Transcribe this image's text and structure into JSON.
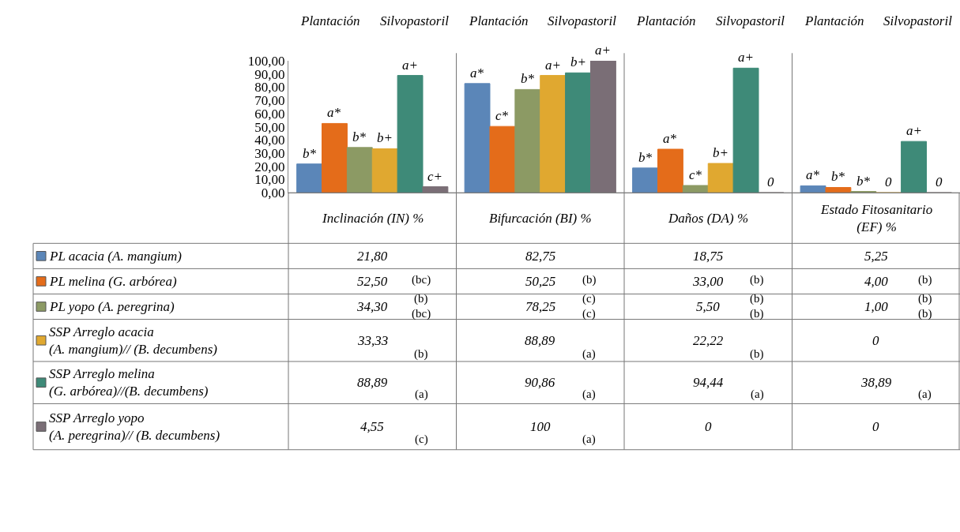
{
  "chart_data": {
    "type": "bar",
    "categories": [
      "Inclinación (IN) %",
      "Bifurcación (BI) %",
      "Daños (DA) %",
      "Estado Fitosanitario (EF) %"
    ],
    "series": [
      {
        "name": "PL acacia (A. mangium)",
        "color": "#5b86b8",
        "values": [
          21.8,
          82.75,
          18.75,
          5.25
        ],
        "value_labels": [
          "21,80",
          "82,75",
          "18,75",
          "5,25"
        ]
      },
      {
        "name": "PL melina (G. arbórea)",
        "color": "#e46c1a",
        "values": [
          52.5,
          50.25,
          33.0,
          4.0
        ],
        "value_labels": [
          "52,50",
          "50,25",
          "33,00",
          "4,00"
        ]
      },
      {
        "name": "PL yopo (A. peregrina)",
        "color": "#8c9a64",
        "values": [
          34.3,
          78.25,
          5.5,
          1.0
        ],
        "value_labels": [
          "34,30",
          "78,25",
          "5,50",
          "1,00"
        ]
      },
      {
        "name": "SSP Arreglo acacia\n(A. mangium)// (B. decumbens)",
        "color": "#e0a830",
        "values": [
          33.33,
          88.89,
          22.22,
          0
        ],
        "value_labels": [
          "33,33",
          "88,89",
          "22,22",
          "0"
        ]
      },
      {
        "name": "SSP Arreglo melina\n(G. arbórea)//(B. decumbens)",
        "color": "#3e8a78",
        "values": [
          88.89,
          90.86,
          94.44,
          38.89
        ],
        "value_labels": [
          "88,89",
          "90,86",
          "94,44",
          "38,89"
        ]
      },
      {
        "name": "SSP Arreglo yopo\n(A. peregrina)// (B. decumbens)",
        "color": "#7a6e76",
        "values": [
          4.55,
          100,
          0,
          0
        ],
        "value_labels": [
          "4,55",
          "100",
          "0",
          "0"
        ]
      }
    ],
    "ylim": [
      0,
      100
    ],
    "yticks": [
      {
        "value": 0,
        "label": "0,00"
      },
      {
        "value": 10,
        "label": "10,00"
      },
      {
        "value": 20,
        "label": "20,00"
      },
      {
        "value": 30,
        "label": "30,00"
      },
      {
        "value": 40,
        "label": "40,00"
      },
      {
        "value": 50,
        "label": "50,00"
      },
      {
        "value": 60,
        "label": "60,00"
      },
      {
        "value": 70,
        "label": "70,00"
      },
      {
        "value": 80,
        "label": "80,00"
      },
      {
        "value": 90,
        "label": "90,00"
      },
      {
        "value": 100,
        "label": "100,00"
      }
    ],
    "legend": "bottom",
    "annotations": [
      "Plantación",
      "Silvopastoril",
      "Plantación",
      "Silvopastoril",
      "Plantación",
      "Silvopastoril",
      "Plantación",
      "Silvopastoril",
      "(bc)",
      "(b)",
      "(b)",
      "(b)",
      "(b)",
      "(c)",
      "(b)",
      "(b)",
      "(bc)",
      "(c)",
      "(b)",
      "(b)",
      "(b)",
      "(a)",
      "(b)",
      "(a)",
      "(a)",
      "(a)",
      "(a)",
      "(c)",
      "(a)",
      "b*",
      "a*",
      "b*",
      "a*",
      "a*",
      "c*",
      "a*",
      "b*",
      "b*",
      "b*",
      "c*",
      "b*",
      "b+",
      "a+",
      "b+",
      "0",
      "a+",
      "b+",
      "a+",
      "a+",
      "c+",
      "a+",
      "0",
      "0"
    ]
  }
}
